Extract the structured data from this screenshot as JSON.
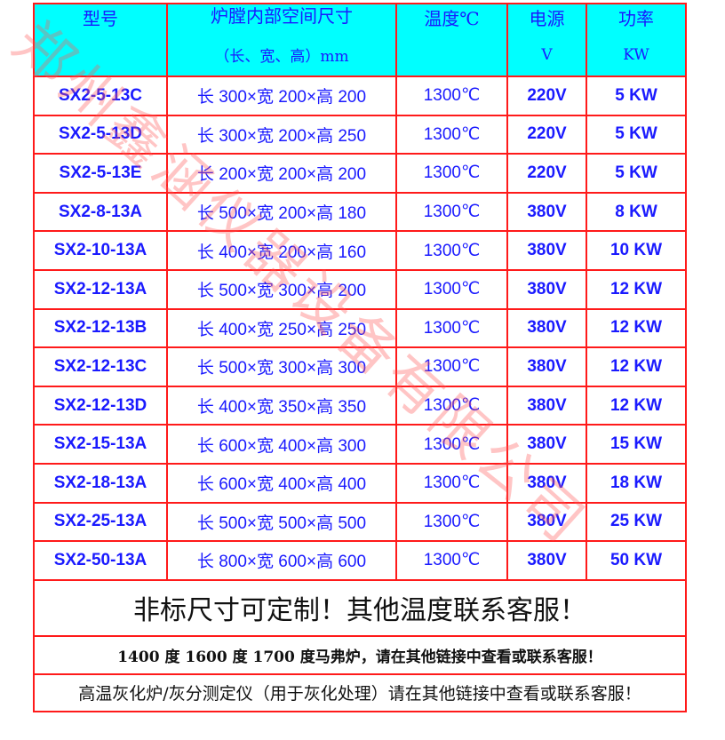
{
  "colors": {
    "header_bg": "#00ffff",
    "border": "#ff1a1a",
    "text_blue": "#1a1aff"
  },
  "watermark": "郑州鑫涵仪器设备有限公司",
  "header": [
    {
      "line1": "型号",
      "line2": ""
    },
    {
      "line1": "炉膛内部空间尺寸",
      "line2": "（长、宽、高）mm"
    },
    {
      "line1": "温度℃",
      "line2": ""
    },
    {
      "line1": "电源",
      "line2": "V"
    },
    {
      "line1": "功率",
      "line2": "KW"
    }
  ],
  "rows": [
    [
      "SX2-5-13C",
      "长 300×宽 200×高 200",
      "1300℃",
      "220V",
      "5 KW"
    ],
    [
      "SX2-5-13D",
      "长 300×宽 200×高 250",
      "1300℃",
      "220V",
      "5 KW"
    ],
    [
      "SX2-5-13E",
      "长 200×宽 200×高 200",
      "1300℃",
      "220V",
      "5 KW"
    ],
    [
      "SX2-8-13A",
      "长 500×宽 200×高 180",
      "1300℃",
      "380V",
      "8 KW"
    ],
    [
      "SX2-10-13A",
      "长 400×宽 200×高 160",
      "1300℃",
      "380V",
      "10 KW"
    ],
    [
      "SX2-12-13A",
      "长 500×宽 300×高 200",
      "1300℃",
      "380V",
      "12 KW"
    ],
    [
      "SX2-12-13B",
      "长 400×宽 250×高 250",
      "1300℃",
      "380V",
      "12 KW"
    ],
    [
      "SX2-12-13C",
      "长 500×宽 300×高 300",
      "1300℃",
      "380V",
      "12 KW"
    ],
    [
      "SX2-12-13D",
      "长 400×宽 350×高 350",
      "1300℃",
      "380V",
      "12 KW"
    ],
    [
      "SX2-15-13A",
      "长 600×宽 400×高 300",
      "1300℃",
      "380V",
      "15 KW"
    ],
    [
      "SX2-18-13A",
      "长 600×宽 400×高 400",
      "1300℃",
      "380V",
      "18 KW"
    ],
    [
      "SX2-25-13A",
      "长 500×宽 500×高 500",
      "1300℃",
      "380V",
      "25 KW"
    ],
    [
      "SX2-50-13A",
      "长 800×宽 600×高 600",
      "1300℃",
      "380V",
      "50 KW"
    ]
  ],
  "notes": {
    "custom": "非标尺寸可定制！其他温度联系客服！",
    "other_temps": "1400 度 1600 度 1700 度马弗炉，请在其他链接中查看或联系客服！",
    "ashing": "高温灰化炉/灰分测定仪（用于灰化处理）请在其他链接中查看或联系客服！"
  }
}
